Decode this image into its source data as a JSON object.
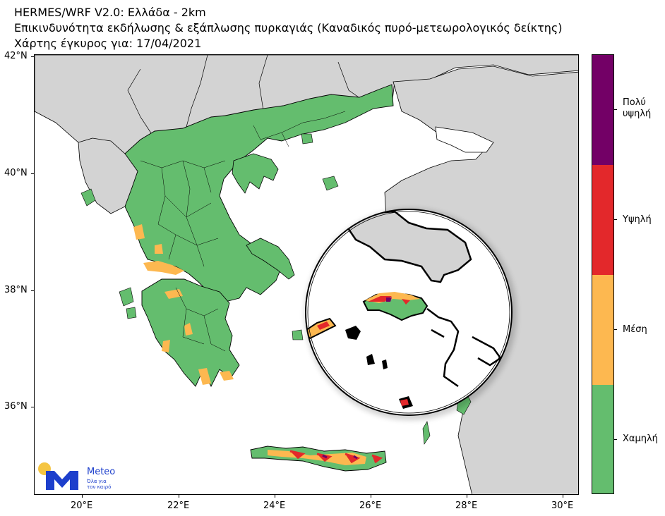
{
  "header": {
    "line1": "HERMES/WRF V2.0: Ελλάδα - 2km",
    "line2": "Επικινδυνότητα εκδήλωσης & εξάπλωσης πυρκαγιάς (Καναδικός πυρό-μετεωρολογικός δείκτης)",
    "line3": "Χάρτης έγκυρος για: 17/04/2021"
  },
  "axes": {
    "lat_labels": [
      "42°N",
      "40°N",
      "38°N",
      "36°N"
    ],
    "lon_labels": [
      "20°E",
      "22°E",
      "24°E",
      "26°E",
      "28°E",
      "30°E"
    ]
  },
  "legend": {
    "levels": [
      {
        "label": "Πολύ υψηλή",
        "color": "#730066"
      },
      {
        "label": "Υψηλή",
        "color": "#e3282b"
      },
      {
        "label": "Μέση",
        "color": "#fdb850"
      },
      {
        "label": "Χαμηλή",
        "color": "#64bd6e"
      }
    ]
  },
  "logo": {
    "name": "Meteo",
    "tagline_1": "Όλα για",
    "tagline_2": "τον καιρό"
  },
  "colors": {
    "land_other": "#d3d3d3",
    "sea": "#ffffff",
    "low": "#64bd6e",
    "medium": "#fdb850",
    "high": "#e3282b",
    "very_high": "#730066",
    "logo_blue": "#1d3fcc",
    "logo_sun": "#f5c542"
  }
}
